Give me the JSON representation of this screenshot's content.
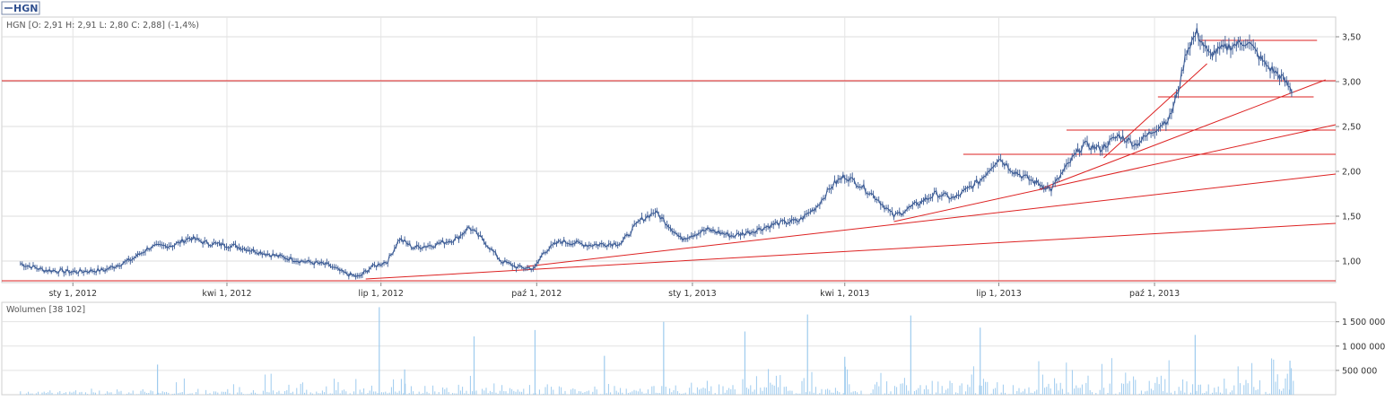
{
  "legend_tab": {
    "label": "HGN",
    "color": "#2f4f8f"
  },
  "chart_data": {
    "type": "line",
    "ticker": "HGN",
    "ohlc_readout": "HGN [O: 2,91  H: 2,91  L: 2,80  C: 2,88] (-1,4%)",
    "price_axis": {
      "ticks": [
        1.0,
        1.5,
        2.0,
        2.5,
        3.0,
        3.5
      ],
      "tick_labels": [
        "1,00",
        "1,50",
        "2,00",
        "2,50",
        "3,00",
        "3,50"
      ],
      "range": [
        0.76,
        3.72
      ],
      "grid": true
    },
    "date_axis": {
      "ticks": [
        "2012-01-01",
        "2012-04-01",
        "2012-07-01",
        "2012-10-01",
        "2013-01-01",
        "2013-04-01",
        "2013-07-01",
        "2013-10-01"
      ],
      "tick_labels": [
        "sty 1, 2012",
        "kwi 1, 2012",
        "lip 1, 2012",
        "paź 1, 2012",
        "sty 1, 2013",
        "kwi 1, 2013",
        "lip 1, 2013",
        "paź 1, 2013"
      ],
      "range": [
        "2011-11-20",
        "2014-01-16"
      ]
    },
    "series": [
      {
        "name": "HGN",
        "color": "#3a5a94",
        "points": [
          [
            "2011-12-01",
            0.97
          ],
          [
            "2011-12-15",
            0.9
          ],
          [
            "2012-01-01",
            0.88
          ],
          [
            "2012-01-20",
            0.9
          ],
          [
            "2012-02-05",
            1.02
          ],
          [
            "2012-02-15",
            1.15
          ],
          [
            "2012-03-01",
            1.18
          ],
          [
            "2012-03-10",
            1.26
          ],
          [
            "2012-03-20",
            1.2
          ],
          [
            "2012-04-05",
            1.17
          ],
          [
            "2012-04-25",
            1.08
          ],
          [
            "2012-05-15",
            1.0
          ],
          [
            "2012-05-30",
            0.96
          ],
          [
            "2012-06-10",
            0.86
          ],
          [
            "2012-06-18",
            0.82
          ],
          [
            "2012-06-25",
            0.93
          ],
          [
            "2012-07-05",
            1.0
          ],
          [
            "2012-07-12",
            1.25
          ],
          [
            "2012-07-20",
            1.15
          ],
          [
            "2012-08-01",
            1.18
          ],
          [
            "2012-08-15",
            1.25
          ],
          [
            "2012-08-22",
            1.38
          ],
          [
            "2012-09-01",
            1.2
          ],
          [
            "2012-09-10",
            1.0
          ],
          [
            "2012-09-20",
            0.93
          ],
          [
            "2012-09-30",
            0.92
          ],
          [
            "2012-10-05",
            1.1
          ],
          [
            "2012-10-15",
            1.22
          ],
          [
            "2012-11-01",
            1.18
          ],
          [
            "2012-11-20",
            1.2
          ],
          [
            "2012-12-01",
            1.45
          ],
          [
            "2012-12-10",
            1.55
          ],
          [
            "2012-12-18",
            1.4
          ],
          [
            "2012-12-25",
            1.25
          ],
          [
            "2013-01-10",
            1.35
          ],
          [
            "2013-01-25",
            1.28
          ],
          [
            "2013-02-05",
            1.33
          ],
          [
            "2013-02-20",
            1.42
          ],
          [
            "2013-03-05",
            1.45
          ],
          [
            "2013-03-15",
            1.6
          ],
          [
            "2013-03-25",
            1.85
          ],
          [
            "2013-04-01",
            1.95
          ],
          [
            "2013-04-10",
            1.85
          ],
          [
            "2013-04-20",
            1.7
          ],
          [
            "2013-04-30",
            1.5
          ],
          [
            "2013-05-10",
            1.6
          ],
          [
            "2013-05-25",
            1.75
          ],
          [
            "2013-06-05",
            1.7
          ],
          [
            "2013-06-20",
            1.9
          ],
          [
            "2013-07-01",
            2.15
          ],
          [
            "2013-07-10",
            2.0
          ],
          [
            "2013-07-20",
            1.9
          ],
          [
            "2013-08-01",
            1.8
          ],
          [
            "2013-08-10",
            2.05
          ],
          [
            "2013-08-20",
            2.3
          ],
          [
            "2013-08-30",
            2.25
          ],
          [
            "2013-09-10",
            2.4
          ],
          [
            "2013-09-20",
            2.3
          ],
          [
            "2013-09-30",
            2.45
          ],
          [
            "2013-10-10",
            2.6
          ],
          [
            "2013-10-15",
            2.9
          ],
          [
            "2013-10-20",
            3.35
          ],
          [
            "2013-10-26",
            3.55
          ],
          [
            "2013-11-02",
            3.3
          ],
          [
            "2013-11-15",
            3.4
          ],
          [
            "2013-11-25",
            3.45
          ],
          [
            "2013-12-05",
            3.2
          ],
          [
            "2013-12-15",
            3.05
          ],
          [
            "2013-12-22",
            2.88
          ]
        ]
      }
    ],
    "trendlines": {
      "color": "#dd2222",
      "horizontal": [
        {
          "value": 3.01,
          "from": "2011-11-20",
          "to": "2014-01-16"
        },
        {
          "value": 3.46,
          "from": "2013-10-28",
          "to": "2014-01-05"
        },
        {
          "value": 2.83,
          "from": "2013-10-03",
          "to": "2014-01-03"
        },
        {
          "value": 2.46,
          "from": "2013-08-10",
          "to": "2014-01-16"
        },
        {
          "value": 2.19,
          "from": "2013-06-10",
          "to": "2014-01-16"
        },
        {
          "value": 0.78,
          "from": "2011-11-20",
          "to": "2014-01-16"
        }
      ],
      "sloped": [
        {
          "from": [
            "2012-06-22",
            0.8
          ],
          "to": [
            "2014-01-16",
            1.42
          ]
        },
        {
          "from": [
            "2012-09-25",
            0.94
          ],
          "to": [
            "2014-01-16",
            1.97
          ]
        },
        {
          "from": [
            "2013-04-30",
            1.44
          ],
          "to": [
            "2014-01-16",
            2.52
          ]
        },
        {
          "from": [
            "2013-07-25",
            1.8
          ],
          "to": [
            "2014-01-10",
            3.02
          ]
        },
        {
          "from": [
            "2013-09-01",
            2.15
          ],
          "to": [
            "2013-11-01",
            3.2
          ]
        }
      ]
    },
    "volume": {
      "label": "Wolumen [38 102]",
      "color": "#9ecbee",
      "ticks": [
        500000,
        1000000,
        1500000
      ],
      "tick_labels": [
        "500 000",
        "1 000 000",
        "1 500 000"
      ],
      "range": [
        0,
        1900000
      ],
      "spikes": [
        [
          "2012-02-20",
          620000
        ],
        [
          "2012-06-30",
          1800000
        ],
        [
          "2012-07-15",
          520000
        ],
        [
          "2012-08-25",
          1200000
        ],
        [
          "2012-09-30",
          1330000
        ],
        [
          "2012-11-10",
          800000
        ],
        [
          "2012-12-15",
          1500000
        ],
        [
          "2013-02-01",
          1300000
        ],
        [
          "2013-03-10",
          1650000
        ],
        [
          "2013-04-01",
          780000
        ],
        [
          "2013-05-10",
          1630000
        ],
        [
          "2013-06-20",
          1380000
        ],
        [
          "2013-10-25",
          1230000
        ],
        [
          "2013-12-20",
          700000
        ]
      ]
    }
  }
}
